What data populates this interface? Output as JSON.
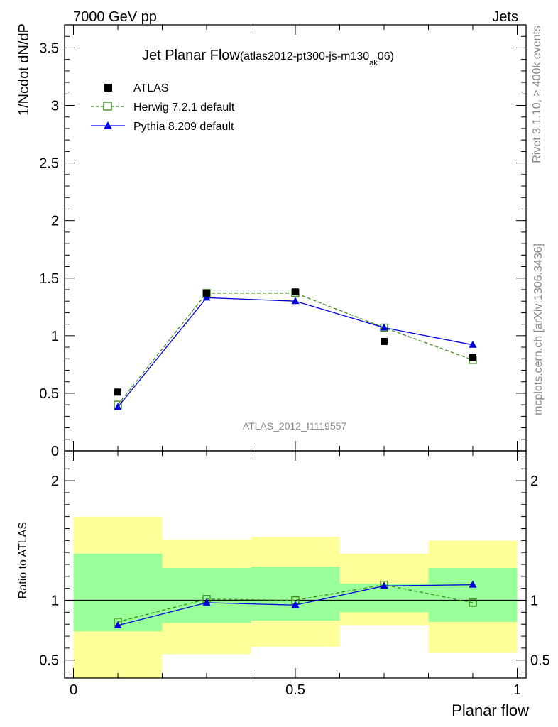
{
  "header": {
    "left": "7000 GeV pp",
    "right": "Jets"
  },
  "side_labels": {
    "rivet": "Rivet 3.1.10, ≥ 400k events",
    "mcplots": "mcplots.cern.ch [arXiv:1306.3436]"
  },
  "chart_data": [
    {
      "panel": "main",
      "type": "scatter",
      "title": "Jet Planar Flow",
      "title_sub_main": "(atlas2012-pt300-js-m130",
      "title_sub_sub": "ak",
      "title_sub_end": "06)",
      "ylabel": "1/Ncdot dN/dP",
      "xlabel": "",
      "watermark": "ATLAS_2012_I1119557",
      "xlim": [
        -0.02,
        1.02
      ],
      "ylim": [
        0,
        3.7
      ],
      "yticks": [
        0,
        0.5,
        1,
        1.5,
        2,
        2.5,
        3,
        3.5
      ],
      "ytick_labels": [
        "0",
        "0.5",
        "1",
        "1.5",
        "2",
        "2.5",
        "3",
        "3.5"
      ],
      "legend_placement": "top-left",
      "series": [
        {
          "name": "ATLAS",
          "style": "data",
          "color": "#000000",
          "x": [
            0.1,
            0.3,
            0.5,
            0.7,
            0.9
          ],
          "y": [
            0.51,
            1.37,
            1.38,
            0.95,
            0.81
          ]
        },
        {
          "name": "Herwig 7.2.1 default",
          "style": "dashed-open-square",
          "color": "#3a8a1a",
          "x": [
            0.1,
            0.3,
            0.5,
            0.7,
            0.9
          ],
          "y": [
            0.4,
            1.37,
            1.37,
            1.07,
            0.79
          ]
        },
        {
          "name": "Pythia 8.209 default",
          "style": "solid-triangle",
          "color": "#0000dd",
          "x": [
            0.1,
            0.3,
            0.5,
            0.7,
            0.9
          ],
          "y": [
            0.38,
            1.33,
            1.3,
            1.07,
            0.92
          ]
        }
      ]
    },
    {
      "panel": "ratio",
      "type": "line",
      "ylabel": "Ratio to ATLAS",
      "xlabel": "Planar flow",
      "xlim": [
        -0.02,
        1.02
      ],
      "ylim": [
        0.35,
        2.25
      ],
      "yticks": [
        0.5,
        1,
        2
      ],
      "ytick_labels": [
        "0.5",
        "1",
        "2"
      ],
      "xticks": [
        0,
        0.5,
        1
      ],
      "xtick_labels": [
        "0",
        "0.5",
        "1"
      ],
      "bins": [
        {
          "x0": 0.0,
          "x1": 0.2,
          "green": [
            0.74,
            1.39
          ],
          "yellow": [
            0.35,
            1.7
          ]
        },
        {
          "x0": 0.2,
          "x1": 0.4,
          "green": [
            0.81,
            1.27
          ],
          "yellow": [
            0.55,
            1.51
          ]
        },
        {
          "x0": 0.4,
          "x1": 0.6,
          "green": [
            0.83,
            1.28
          ],
          "yellow": [
            0.61,
            1.53
          ]
        },
        {
          "x0": 0.6,
          "x1": 0.8,
          "green": [
            0.9,
            1.14
          ],
          "yellow": [
            0.79,
            1.39
          ]
        },
        {
          "x0": 0.8,
          "x1": 1.0,
          "green": [
            0.82,
            1.27
          ],
          "yellow": [
            0.56,
            1.5
          ]
        }
      ],
      "series": [
        {
          "name": "Herwig 7.2.1 default",
          "style": "dashed-open-square",
          "color": "#3a8a1a",
          "x": [
            0.1,
            0.3,
            0.5,
            0.7,
            0.9
          ],
          "y": [
            0.82,
            1.01,
            1.0,
            1.13,
            0.98
          ]
        },
        {
          "name": "Pythia 8.209 default",
          "style": "solid-triangle",
          "color": "#0000dd",
          "x": [
            0.1,
            0.3,
            0.5,
            0.7,
            0.9
          ],
          "y": [
            0.79,
            0.98,
            0.96,
            1.12,
            1.13
          ]
        }
      ]
    }
  ],
  "colors": {
    "band_green": "#99ff99",
    "band_yellow": "#ffff99"
  }
}
